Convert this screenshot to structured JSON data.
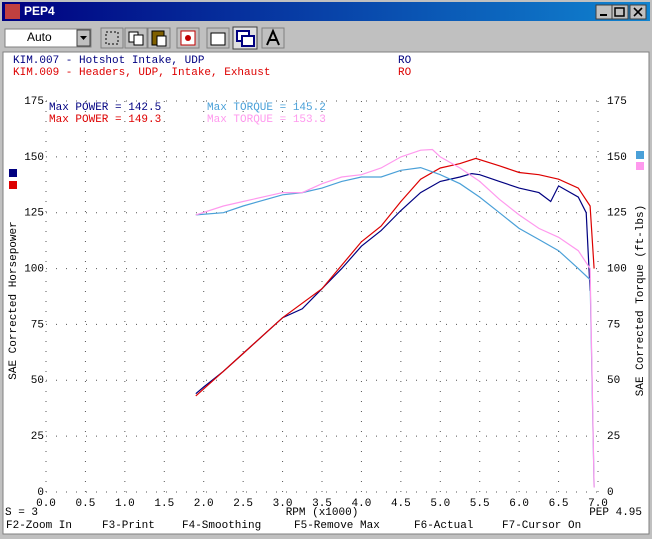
{
  "window": {
    "title": "PEP4"
  },
  "toolbar": {
    "combo": "Auto"
  },
  "status": {
    "left": "S = 3",
    "right": "PEP 4.95"
  },
  "function_keys": [
    "F2-Zoom In",
    "F3-Print",
    "F4-Smoothing",
    "F5-Remove Max",
    "F6-Actual",
    "F7-Cursor On"
  ],
  "chart_data": {
    "type": "line",
    "runs": [
      {
        "label": "KIM.007 - Hotshot Intake, UDP",
        "code": "RO",
        "color": "#000080"
      },
      {
        "label": "KIM.009 - Headers, UDP, Intake, Exhaust",
        "code": "RO",
        "color": "#dd0000"
      }
    ],
    "x_label": "RPM (x1000)",
    "y_label": "SAE Corrected Horsepower",
    "y2_label": "SAE Corrected Torque (ft-lbs)",
    "xlim": [
      0,
      7
    ],
    "xticks": [
      {
        "value": 0,
        "label": "0.0"
      },
      0.5,
      {
        "value": 1,
        "label": "1.0"
      },
      1.5,
      {
        "value": 2,
        "label": "2.0"
      },
      2.5,
      {
        "value": 3,
        "label": "3.0"
      },
      3.5,
      {
        "value": 4,
        "label": "4.0"
      },
      4.5,
      {
        "value": 5,
        "label": "5.0"
      },
      5.5,
      {
        "value": 6,
        "label": "6.0"
      },
      6.5,
      {
        "value": 7,
        "label": "7.0"
      }
    ],
    "ylim": [
      0,
      175
    ],
    "yticks": [
      0,
      25,
      50,
      75,
      100,
      125,
      150,
      175
    ],
    "y2lim": [
      0,
      175
    ],
    "y2ticks": [
      0,
      25,
      50,
      75,
      100,
      125,
      150,
      175
    ],
    "grid": true,
    "series": [
      {
        "name": "Max POWER = 142.5",
        "color": "#000080",
        "x": [
          1.9,
          2.0,
          2.25,
          2.5,
          2.75,
          3.0,
          3.25,
          3.5,
          3.75,
          4.0,
          4.25,
          4.5,
          4.75,
          5.0,
          5.25,
          5.4,
          5.5,
          5.75,
          6.0,
          6.25,
          6.4,
          6.5,
          6.75,
          6.85,
          6.9
        ],
        "values": [
          44,
          47,
          54,
          62,
          70,
          78,
          82,
          91,
          100,
          110,
          117,
          126,
          134,
          139,
          141,
          142.5,
          142,
          139,
          136,
          134,
          130,
          137,
          132,
          125,
          90
        ]
      },
      {
        "name": "Max POWER = 149.3",
        "color": "#dd0000",
        "x": [
          1.9,
          2.25,
          2.5,
          3.0,
          3.5,
          4.0,
          4.25,
          4.5,
          4.75,
          5.0,
          5.25,
          5.45,
          5.75,
          6.0,
          6.25,
          6.5,
          6.75,
          6.9,
          6.95
        ],
        "values": [
          43,
          54,
          62,
          78,
          91,
          112,
          119,
          130,
          140,
          145,
          147,
          149.3,
          146,
          143,
          142,
          140,
          136,
          128,
          100
        ]
      },
      {
        "name": "Max TORQUE = 145.2",
        "color": "#4aa0d8",
        "axis": "y2",
        "x": [
          1.9,
          2.25,
          2.5,
          3.0,
          3.25,
          3.5,
          3.75,
          4.0,
          4.25,
          4.5,
          4.75,
          5.0,
          5.25,
          5.5,
          5.75,
          6.0,
          6.25,
          6.5,
          6.75,
          6.9,
          6.95
        ],
        "values": [
          124,
          125,
          128,
          133,
          134,
          136,
          139,
          141,
          141,
          144,
          145.2,
          142,
          138,
          132,
          125,
          118,
          113,
          108,
          100,
          95,
          2
        ]
      },
      {
        "name": "Max TORQUE = 153.3",
        "color": "#ff99ee",
        "axis": "y2",
        "x": [
          1.9,
          2.25,
          2.5,
          3.0,
          3.25,
          3.5,
          3.75,
          4.0,
          4.25,
          4.5,
          4.75,
          4.9,
          5.0,
          5.25,
          5.5,
          5.75,
          6.0,
          6.25,
          6.5,
          6.75,
          6.9,
          6.95
        ],
        "values": [
          124,
          128,
          130,
          134,
          134,
          138,
          141,
          142,
          145,
          150,
          153,
          153.3,
          150,
          145,
          139,
          131,
          124,
          118,
          114,
          108,
          100,
          2
        ]
      }
    ]
  }
}
